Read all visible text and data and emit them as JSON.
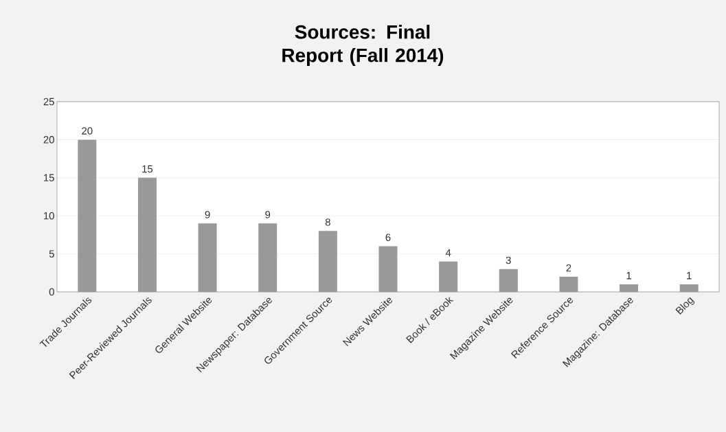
{
  "chart_data": {
    "type": "bar",
    "title": "Sources: Final Report (Fall 2014)",
    "categories": [
      "Trade Journals",
      "Peer-Reviewed Journals",
      "General Website",
      "Newspaper: Database",
      "Government Source",
      "News Website",
      "Book / eBook",
      "Magazine Website",
      "Reference Source",
      "Magazine: Database",
      "Blog"
    ],
    "values": [
      20,
      15,
      9,
      9,
      8,
      6,
      4,
      3,
      2,
      1,
      1
    ],
    "color": "#999999",
    "ylim": [
      0,
      25
    ],
    "yticks": [
      0,
      5,
      10,
      15,
      20,
      25
    ],
    "grid": "y",
    "data_labels": true
  }
}
